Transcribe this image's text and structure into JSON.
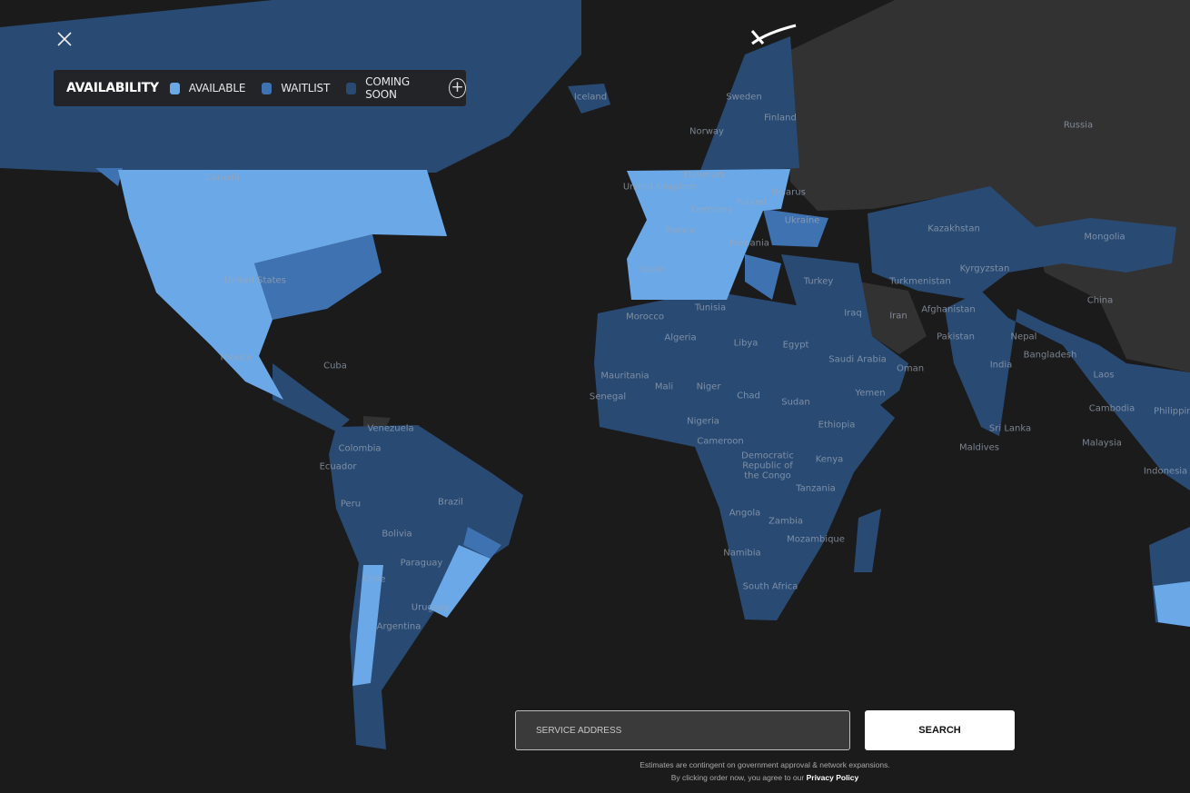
{
  "colors": {
    "ocean": "#1b1b1b",
    "available": "#6aa8e8",
    "waitlist": "#3f72b0",
    "coming_soon": "#294a73",
    "unavailable": "#333233"
  },
  "legend": {
    "title": "AVAILABILITY",
    "items": [
      {
        "label": "AVAILABLE",
        "color": "#6aa8e8"
      },
      {
        "label": "WAITLIST",
        "color": "#3f72b0"
      },
      {
        "label": "COMING SOON",
        "color": "#294a73"
      }
    ],
    "expand_icon": "plus-circle-icon"
  },
  "close_icon": "close-icon",
  "logo_icon": "starlink-x-logo",
  "countries": [
    "Iceland",
    "Sweden",
    "Finland",
    "Norway",
    "Russia",
    "Canada",
    "United Kingdom",
    "Denmark",
    "Belarus",
    "Poland",
    "Germany",
    "Ukraine",
    "Kazakhstan",
    "Mongolia",
    "France",
    "Romania",
    "Spain",
    "Kyrgyzstan",
    "Turkmenistan",
    "Turkey",
    "United States",
    "Tunisia",
    "Iraq",
    "Afghanistan",
    "China",
    "Morocco",
    "Iran",
    "Algeria",
    "Libya",
    "Egypt",
    "Saudi Arabia",
    "Pakistan",
    "Nepal",
    "Oman",
    "Bangladesh",
    "India",
    "Mexico",
    "Cuba",
    "Laos",
    "Mauritania",
    "Mali",
    "Niger",
    "Chad",
    "Sudan",
    "Yemen",
    "Senegal",
    "Philippines",
    "Cambodia",
    "Venezuela",
    "Ethiopia",
    "Nigeria",
    "Sri Lanka",
    "Colombia",
    "Cameroon",
    "Malaysia",
    "Maldives",
    "Democratic Republic of the Congo",
    "Kenya",
    "Ecuador",
    "Indonesia",
    "Tanzania",
    "Peru",
    "Brazil",
    "Angola",
    "Zambia",
    "Bolivia",
    "Mozambique",
    "Namibia",
    "Paraguay",
    "Chile",
    "South Africa",
    "Uruguay",
    "Argentina"
  ],
  "search": {
    "placeholder": "SERVICE ADDRESS",
    "value": "",
    "button": "SEARCH"
  },
  "disclaimer": {
    "line1": "Estimates are contingent on government approval & network expansions.",
    "line2": "By clicking order now, you agree to our ",
    "link": "Privacy Policy"
  }
}
